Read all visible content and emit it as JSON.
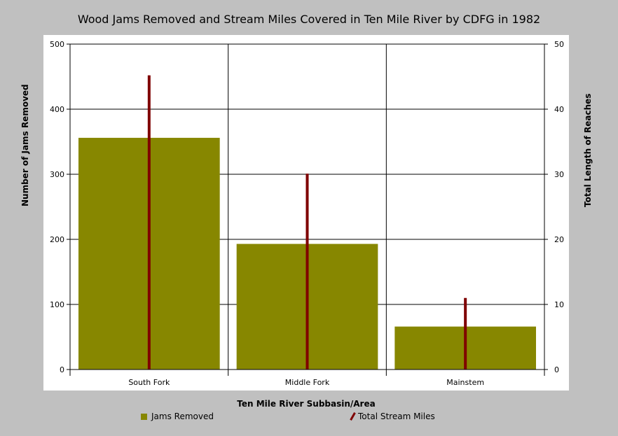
{
  "chart_data": {
    "type": "bar",
    "title": "Wood Jams Removed and Stream Miles Covered in Ten Mile River by CDFG in 1982",
    "xlabel": "Ten Mile River Subbasin/Area",
    "ylabel_left": "Number of Jams Removed",
    "ylabel_right": "Total Length of Reaches",
    "categories": [
      "South Fork",
      "Middle Fork",
      "Mainstem"
    ],
    "series": [
      {
        "name": "Jams Removed",
        "axis": "left",
        "render": "bar",
        "values": [
          356,
          193,
          66
        ],
        "color": "#878700"
      },
      {
        "name": "Total Stream Miles",
        "axis": "right",
        "render": "line",
        "values": [
          45.2,
          30.1,
          11.0
        ],
        "color": "#7f0000"
      }
    ],
    "ylim_left": [
      0,
      500
    ],
    "yticks_left": [
      "0",
      "100",
      "200",
      "300",
      "400",
      "500"
    ],
    "ylim_right": [
      0,
      50
    ],
    "yticks_right": [
      "0",
      "10",
      "20",
      "30",
      "40",
      "50"
    ],
    "grid": true,
    "legend_position": "bottom"
  }
}
